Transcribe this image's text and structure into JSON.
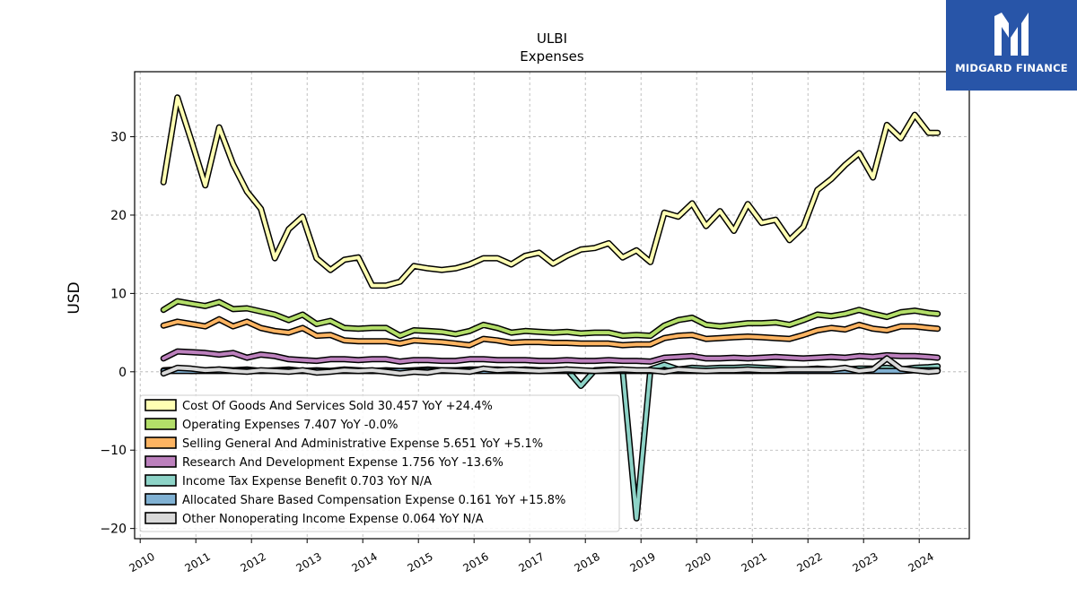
{
  "brand": {
    "name": "MIDGARD FINANCE",
    "bg_color": "#2855a8"
  },
  "chart_data": {
    "type": "line",
    "title": "ULBI",
    "subtitle": "Expenses",
    "xlabel": "",
    "ylabel": "USD",
    "xlim": [
      2009.9,
      2024.9
    ],
    "ylim": [
      -21.3,
      38.3
    ],
    "xticks": [
      "2010",
      "2011",
      "2012",
      "2013",
      "2014",
      "2015",
      "2016",
      "2017",
      "2018",
      "2019",
      "2020",
      "2021",
      "2022",
      "2023",
      "2024"
    ],
    "yticks": [
      -20,
      -10,
      0,
      10,
      20,
      30
    ],
    "ytick_labels": [
      "−20",
      "−10",
      "0",
      "10",
      "20",
      "30"
    ],
    "grid": true,
    "legend_position": "lower-left",
    "x": [
      2010.42,
      2010.67,
      2010.92,
      2011.17,
      2011.42,
      2011.67,
      2011.92,
      2012.17,
      2012.42,
      2012.67,
      2012.92,
      2013.17,
      2013.42,
      2013.67,
      2013.92,
      2014.17,
      2014.42,
      2014.67,
      2014.92,
      2015.17,
      2015.42,
      2015.67,
      2015.92,
      2016.17,
      2016.42,
      2016.67,
      2016.92,
      2017.17,
      2017.42,
      2017.67,
      2017.92,
      2018.17,
      2018.42,
      2018.67,
      2018.92,
      2019.17,
      2019.42,
      2019.67,
      2019.92,
      2020.17,
      2020.42,
      2020.67,
      2020.92,
      2021.17,
      2021.42,
      2021.67,
      2021.92,
      2022.17,
      2022.42,
      2022.67,
      2022.92,
      2023.17,
      2023.42,
      2023.67,
      2023.92,
      2024.17,
      2024.33
    ],
    "series": [
      {
        "name": "Cost Of Goods And Services Sold",
        "legend_label": "Cost Of Goods And Services Sold  30.457 YoY +24.4%",
        "color": "#ffffb3",
        "values": [
          24.2,
          35.0,
          29.5,
          23.8,
          31.2,
          26.5,
          23.0,
          20.8,
          14.5,
          18.2,
          19.8,
          14.5,
          13.0,
          14.3,
          14.6,
          11.0,
          11.0,
          11.5,
          13.5,
          13.2,
          13.0,
          13.2,
          13.7,
          14.5,
          14.5,
          13.7,
          14.8,
          15.2,
          13.8,
          14.8,
          15.6,
          15.8,
          16.4,
          14.6,
          15.5,
          14.0,
          20.3,
          19.8,
          21.5,
          18.6,
          20.5,
          18.0,
          21.4,
          19.0,
          19.4,
          16.8,
          18.5,
          23.2,
          24.6,
          26.4,
          27.9,
          24.8,
          31.5,
          29.8,
          32.8,
          30.5,
          30.5
        ]
      },
      {
        "name": "Operating Expenses",
        "legend_label": "Operating Expenses  7.407 YoY -0.0%",
        "color": "#b3de69",
        "values": [
          7.9,
          9.0,
          8.7,
          8.4,
          8.9,
          8.0,
          8.1,
          7.7,
          7.3,
          6.6,
          7.3,
          6.1,
          6.5,
          5.6,
          5.5,
          5.6,
          5.6,
          4.6,
          5.3,
          5.2,
          5.1,
          4.8,
          5.2,
          6.0,
          5.6,
          5.0,
          5.2,
          5.1,
          5.0,
          5.1,
          4.9,
          5.0,
          5.0,
          4.6,
          4.7,
          4.6,
          5.9,
          6.6,
          6.9,
          6.0,
          5.8,
          6.0,
          6.2,
          6.2,
          6.3,
          6.0,
          6.6,
          7.3,
          7.1,
          7.4,
          7.9,
          7.4,
          7.0,
          7.6,
          7.8,
          7.5,
          7.4
        ]
      },
      {
        "name": "Selling General And Administrative Expense",
        "legend_label": "Selling General And Administrative Expense  5.651 YoY +5.1%",
        "color": "#fdb462",
        "values": [
          5.9,
          6.4,
          6.1,
          5.8,
          6.7,
          5.8,
          6.4,
          5.6,
          5.2,
          5.0,
          5.6,
          4.6,
          4.7,
          4.0,
          3.9,
          3.9,
          3.9,
          3.6,
          4.0,
          3.9,
          3.8,
          3.6,
          3.4,
          4.2,
          4.0,
          3.7,
          3.8,
          3.8,
          3.7,
          3.7,
          3.6,
          3.6,
          3.6,
          3.4,
          3.5,
          3.5,
          4.3,
          4.6,
          4.7,
          4.2,
          4.3,
          4.4,
          4.5,
          4.4,
          4.3,
          4.2,
          4.7,
          5.3,
          5.6,
          5.4,
          6.0,
          5.5,
          5.3,
          5.8,
          5.8,
          5.6,
          5.5
        ]
      },
      {
        "name": "Research And Development Expense",
        "legend_label": "Research And Development Expense  1.756 YoY -13.6%",
        "color": "#bc80bd",
        "values": [
          1.7,
          2.6,
          2.5,
          2.4,
          2.2,
          2.4,
          1.8,
          2.2,
          2.0,
          1.6,
          1.5,
          1.4,
          1.6,
          1.6,
          1.5,
          1.6,
          1.6,
          1.3,
          1.5,
          1.5,
          1.4,
          1.4,
          1.6,
          1.6,
          1.5,
          1.5,
          1.5,
          1.4,
          1.4,
          1.5,
          1.4,
          1.4,
          1.5,
          1.4,
          1.4,
          1.3,
          1.8,
          1.9,
          2.0,
          1.7,
          1.7,
          1.8,
          1.7,
          1.8,
          1.9,
          1.8,
          1.7,
          1.8,
          1.9,
          1.8,
          2.0,
          1.9,
          2.1,
          2.0,
          2.0,
          1.9,
          1.8
        ]
      },
      {
        "name": "Income Tax Expense Benefit",
        "legend_label": "Income Tax Expense Benefit  0.703 YoY N/A",
        "color": "#8dd3c7",
        "values": [
          0.2,
          0.3,
          0.1,
          0.2,
          0.3,
          0.2,
          0.3,
          0.1,
          0.2,
          0.3,
          0.1,
          0.2,
          0.1,
          0.3,
          0.2,
          0.1,
          0.2,
          0.1,
          0.2,
          0.3,
          0.2,
          0.2,
          0.3,
          0.3,
          0.3,
          0.2,
          0.3,
          0.2,
          0.2,
          0.3,
          -1.8,
          0.2,
          0.3,
          0.3,
          -18.7,
          0.3,
          0.9,
          0.3,
          0.5,
          0.4,
          0.5,
          0.5,
          0.6,
          0.5,
          0.4,
          0.3,
          0.3,
          0.4,
          0.3,
          0.3,
          0.4,
          0.4,
          0.5,
          0.3,
          0.5,
          0.6,
          0.7
        ]
      },
      {
        "name": "Allocated Share Based Compensation Expense",
        "legend_label": "Allocated Share Based Compensation Expense  0.161 YoY +15.8%",
        "color": "#80b1d3",
        "values": [
          0.1,
          0.1,
          0.1,
          0.1,
          0.1,
          0.1,
          0.1,
          0.1,
          0.1,
          0.1,
          0.1,
          0.1,
          0.1,
          0.1,
          0.1,
          0.1,
          0.1,
          0.1,
          0.1,
          0.1,
          0.1,
          0.1,
          0.1,
          0.1,
          0.1,
          0.1,
          0.1,
          0.1,
          0.1,
          0.1,
          0.1,
          0.1,
          0.1,
          0.1,
          0.1,
          0.1,
          0.1,
          0.1,
          0.1,
          0.1,
          0.1,
          0.1,
          0.1,
          0.1,
          0.1,
          0.1,
          0.1,
          0.1,
          0.1,
          0.1,
          0.1,
          0.1,
          0.1,
          0.1,
          0.2,
          0.2,
          0.2
        ]
      },
      {
        "name": "Other Nonoperating Income Expense",
        "legend_label": "Other Nonoperating Income Expense  0.064 YoY N/A",
        "color": "#d9d9d9",
        "values": [
          -0.2,
          0.5,
          0.4,
          0.2,
          0.3,
          0.1,
          0.0,
          0.2,
          0.1,
          0.0,
          0.2,
          -0.1,
          0.0,
          0.2,
          0.1,
          0.2,
          0.0,
          -0.2,
          0.0,
          -0.1,
          0.2,
          0.1,
          0.0,
          0.4,
          0.2,
          0.3,
          0.2,
          0.1,
          0.2,
          0.3,
          0.2,
          0.1,
          0.2,
          0.3,
          0.2,
          0.2,
          0.0,
          0.3,
          0.2,
          0.1,
          0.2,
          0.2,
          0.3,
          0.2,
          0.2,
          0.3,
          0.3,
          0.3,
          0.3,
          0.5,
          0.1,
          0.3,
          1.7,
          0.4,
          0.2,
          0.0,
          0.1
        ]
      }
    ]
  }
}
